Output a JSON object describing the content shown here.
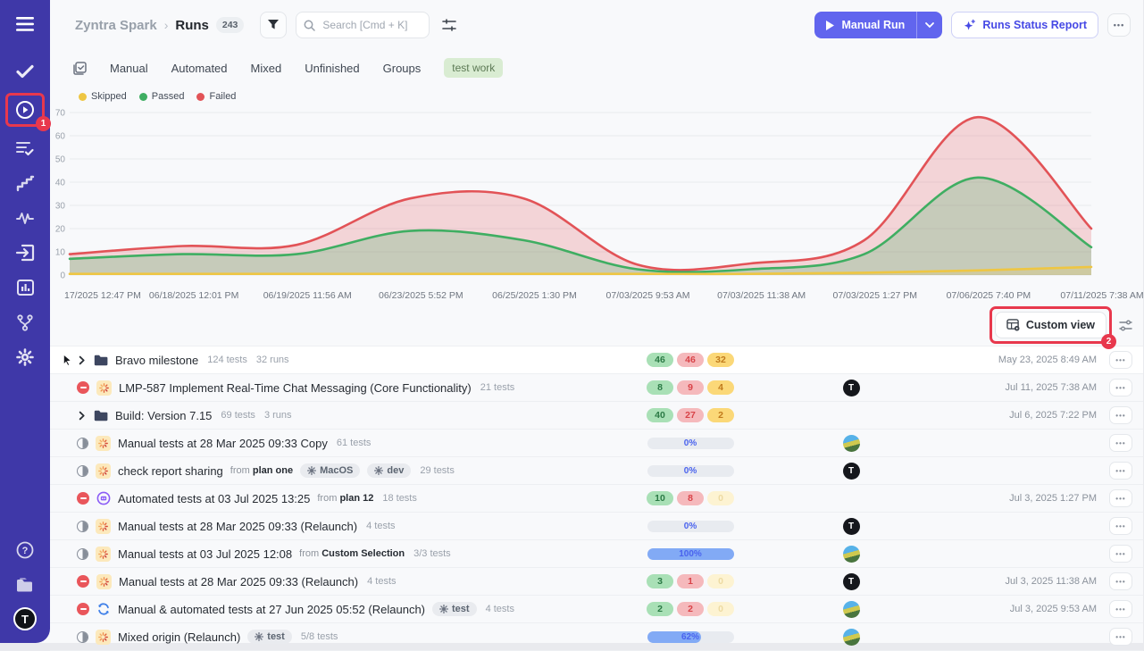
{
  "colors": {
    "sidebar_bg": "#3f38a8",
    "accent": "#6165ee",
    "annotation_red": "#e8384d",
    "passed": "#3fae62",
    "failed": "#e25357",
    "skipped": "#f0c63c"
  },
  "sidebar": {
    "items": [
      "menu",
      "tests-check",
      "runs-play",
      "test-cases",
      "milestones",
      "activity",
      "requirements",
      "reports",
      "integrations",
      "settings",
      "help",
      "documents",
      "account"
    ],
    "active_item": "runs-play",
    "avatar_text": "T"
  },
  "header": {
    "breadcrumb_project": "Zyntra Spark",
    "breadcrumb_sep": "›",
    "breadcrumb_page": "Runs",
    "count": "243",
    "search_placeholder": "Search [Cmd + K]",
    "manual_run_label": "Manual Run",
    "runs_status_report_label": "Runs Status Report",
    "more_label": "•••"
  },
  "tabs": {
    "items": [
      "Manual",
      "Automated",
      "Mixed",
      "Unfinished",
      "Groups"
    ],
    "tag": "test work"
  },
  "legend": {
    "items": [
      {
        "label": "Skipped",
        "color": "#eec643"
      },
      {
        "label": "Passed",
        "color": "#3fae62"
      },
      {
        "label": "Failed",
        "color": "#e25357"
      }
    ]
  },
  "chart_data": {
    "type": "area",
    "title": "",
    "xlabel": "",
    "ylabel": "",
    "ylim": [
      0,
      70
    ],
    "y_ticks": [
      0,
      10,
      20,
      30,
      40,
      50,
      60,
      70
    ],
    "grid": true,
    "legend_position": "top-left",
    "x_labels": [
      "17/2025 12:47 PM",
      "06/18/2025 12:01 PM",
      "06/19/2025 11:56 AM",
      "06/23/2025 5:52 PM",
      "06/25/2025 1:30 PM",
      "07/03/2025 9:53 AM",
      "07/03/2025 11:38 AM",
      "07/03/2025 1:27 PM",
      "07/06/2025 7:40 PM",
      "07/11/2025 7:38 AM"
    ],
    "series": [
      {
        "name": "Skipped",
        "color": "#eec643",
        "fill": "rgba(238,198,67,0.20)",
        "values": [
          0.5,
          0.5,
          0.5,
          0.5,
          0.5,
          0.5,
          0.5,
          1,
          2,
          3.5
        ]
      },
      {
        "name": "Passed",
        "color": "#3fae62",
        "fill": "rgba(63,174,98,0.25)",
        "values": [
          7,
          9,
          9,
          19,
          15,
          2.5,
          2.5,
          9,
          42,
          12
        ]
      },
      {
        "name": "Failed",
        "color": "#e25357",
        "fill": "rgba(226,83,87,0.22)",
        "values": [
          9,
          12.5,
          13,
          33,
          33,
          4.5,
          5,
          15,
          68,
          20
        ]
      }
    ]
  },
  "toolbar": {
    "custom_view_label": "Custom view"
  },
  "annotations": {
    "step1": "1",
    "step2": "2"
  },
  "table": {
    "rows": [
      {
        "pointer": true,
        "chevron": true,
        "icon": "folder",
        "title": "Bravo milestone",
        "meta": [
          "124 tests",
          "32 runs"
        ],
        "result": {
          "type": "counts",
          "passed": "46",
          "failed": "46",
          "skipped": "32",
          "skipped_muted": false
        },
        "avatar": null,
        "date": "May 23, 2025 8:49 AM",
        "highlight": true
      },
      {
        "status": "stopped",
        "icon": "manual",
        "title": "LMP-587 Implement Real-Time Chat Messaging (Core Functionality)",
        "meta": [
          "21 tests"
        ],
        "result": {
          "type": "counts",
          "passed": "8",
          "failed": "9",
          "skipped": "4",
          "skipped_muted": false
        },
        "avatar": "logo",
        "date": "Jul 11, 2025 7:38 AM"
      },
      {
        "chevron": true,
        "icon": "folder",
        "title": "Build: Version 7.15",
        "meta": [
          "69 tests",
          "3 runs"
        ],
        "result": {
          "type": "counts",
          "passed": "40",
          "failed": "27",
          "skipped": "2",
          "skipped_muted": false
        },
        "avatar": null,
        "date": "Jul 6, 2025 7:22 PM"
      },
      {
        "status": "half",
        "icon": "manual",
        "title": "Manual tests at 28 Mar 2025 09:33 Copy",
        "meta": [
          "61 tests"
        ],
        "result": {
          "type": "progress",
          "label": "0%",
          "pct": 0
        },
        "avatar": "photo",
        "date": null
      },
      {
        "status": "half",
        "icon": "manual",
        "title": "check report sharing",
        "from": "plan one",
        "config": [
          "MacOS",
          "dev"
        ],
        "meta": [
          "29 tests"
        ],
        "result": {
          "type": "progress",
          "label": "0%",
          "pct": 0
        },
        "avatar": "logo",
        "date": null
      },
      {
        "status": "stopped",
        "icon": "auto",
        "title": "Automated tests at 03 Jul 2025 13:25",
        "from": "plan 12",
        "meta": [
          "18 tests"
        ],
        "result": {
          "type": "counts",
          "passed": "10",
          "failed": "8",
          "skipped": "0",
          "skipped_muted": true
        },
        "avatar": null,
        "date": "Jul 3, 2025 1:27 PM"
      },
      {
        "status": "half",
        "icon": "manual",
        "title": "Manual tests at 28 Mar 2025 09:33 (Relaunch)",
        "meta": [
          "4 tests"
        ],
        "result": {
          "type": "progress",
          "label": "0%",
          "pct": 0
        },
        "avatar": "logo",
        "date": null
      },
      {
        "status": "half",
        "icon": "manual",
        "title": "Manual tests at 03 Jul 2025 12:08",
        "from": "Custom Selection",
        "meta": [
          "3/3 tests"
        ],
        "result": {
          "type": "progress",
          "label": "100%",
          "pct": 100
        },
        "avatar": "photo",
        "date": null
      },
      {
        "status": "stopped",
        "icon": "manual",
        "title": "Manual tests at 28 Mar 2025 09:33 (Relaunch)",
        "meta": [
          "4 tests"
        ],
        "result": {
          "type": "counts",
          "passed": "3",
          "failed": "1",
          "skipped": "0",
          "skipped_muted": true
        },
        "avatar": "logo",
        "date": "Jul 3, 2025 11:38 AM"
      },
      {
        "status": "stopped",
        "icon": "mixed",
        "title": "Manual & automated tests at 27 Jun 2025 05:52 (Relaunch)",
        "config": [
          "test"
        ],
        "meta": [
          "4 tests"
        ],
        "result": {
          "type": "counts",
          "passed": "2",
          "failed": "2",
          "skipped": "0",
          "skipped_muted": true
        },
        "avatar": "photo",
        "date": "Jul 3, 2025 9:53 AM"
      },
      {
        "status": "half",
        "icon": "manual",
        "title": "Mixed origin (Relaunch)",
        "config": [
          "test"
        ],
        "meta": [
          "5/8 tests"
        ],
        "result": {
          "type": "progress",
          "label": "62%",
          "pct": 62
        },
        "avatar": "photo",
        "date": null
      }
    ]
  }
}
